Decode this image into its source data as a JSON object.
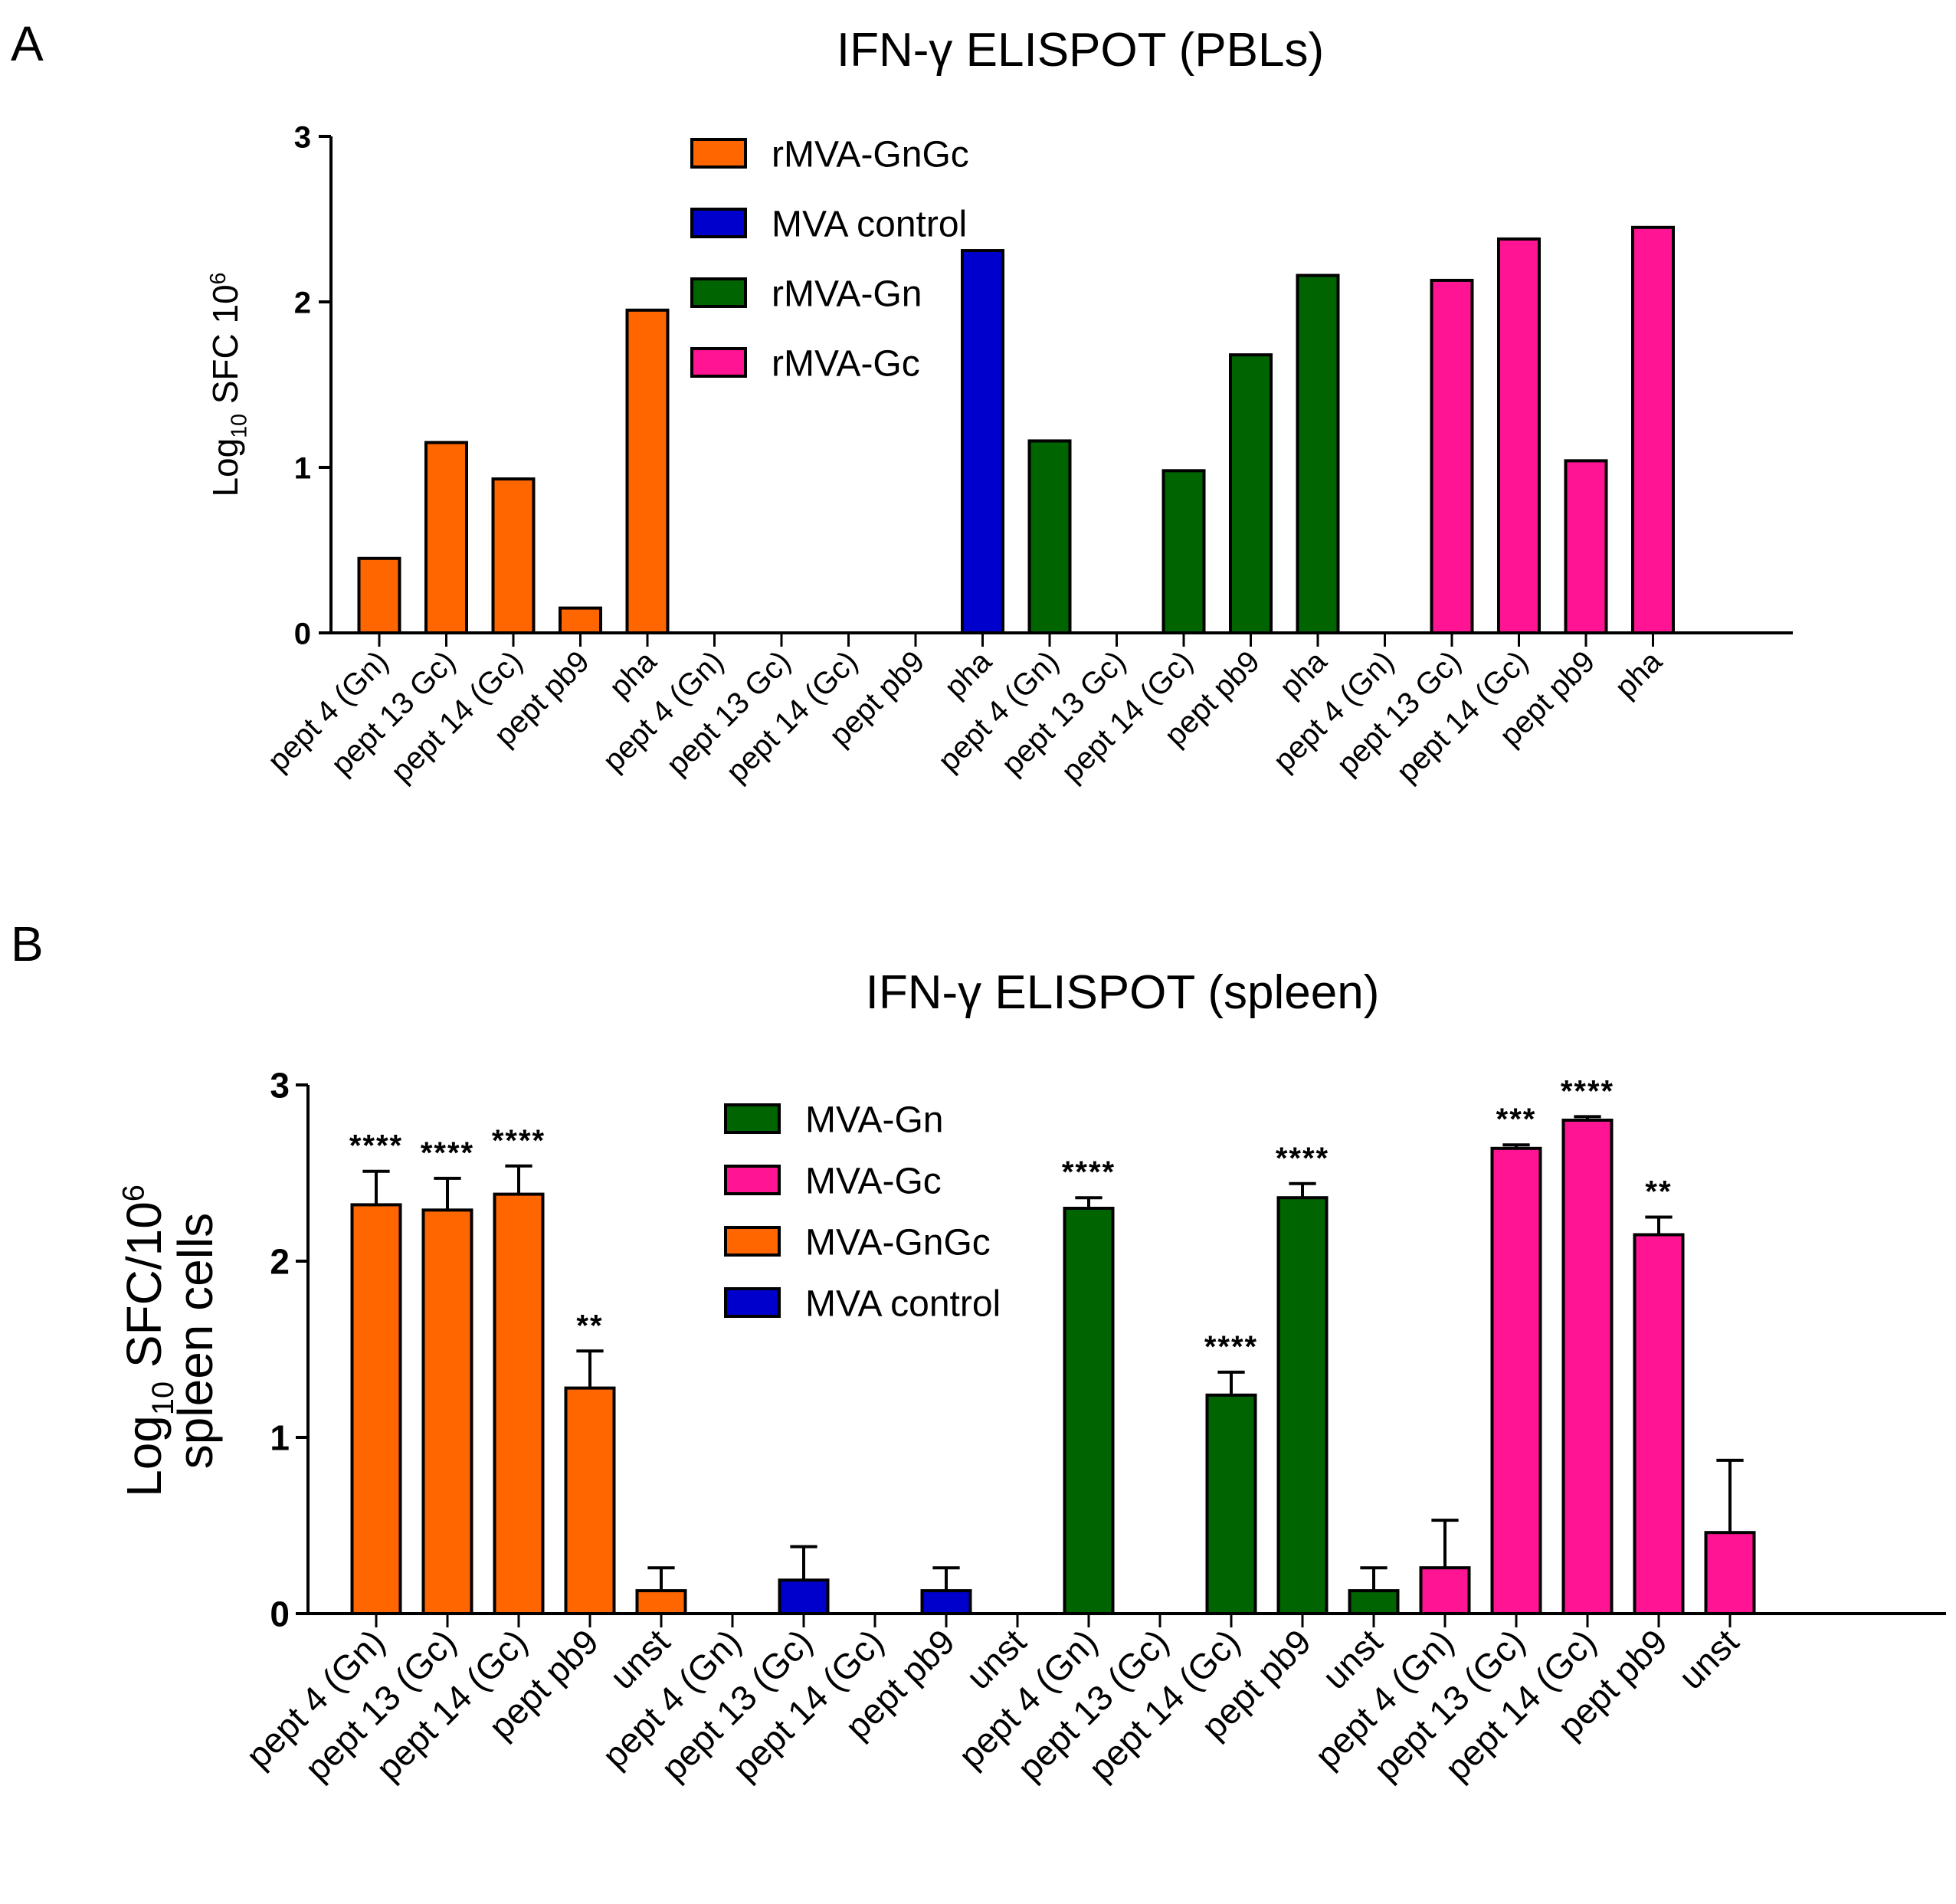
{
  "figure": {
    "panel_a_label": "A",
    "panel_b_label": "B"
  },
  "chart_data": [
    {
      "type": "bar",
      "title": "IFN-γ ELISPOT (PBLs)",
      "ylabel_main": "Log",
      "ylabel_sub": "10",
      "ylabel_rest": " SFC 10",
      "ylabel_sup": "6",
      "xlabel": "",
      "ylim": [
        0,
        3
      ],
      "yticks": [
        "0",
        "1",
        "2",
        "3"
      ],
      "error_bars": false,
      "legend": [
        {
          "name": "rMVA-GnGc",
          "color": "#ff6600"
        },
        {
          "name": "MVA control",
          "color": "#0000cc"
        },
        {
          "name": "rMVA-Gn",
          "color": "#006400"
        },
        {
          "name": "rMVA-Gc",
          "color": "#ff1493"
        }
      ],
      "groups": [
        {
          "name": "rMVA-GnGc",
          "color": "#ff6600",
          "categories": [
            "pept 4 (Gn)",
            "pept 13 Gc)",
            "pept 14 (Gc)",
            "pept pb9",
            "pha"
          ],
          "values": [
            0.45,
            1.15,
            0.93,
            0.15,
            1.95
          ]
        },
        {
          "name": "MVA control",
          "color": "#0000cc",
          "categories": [
            "pept 4 (Gn)",
            "pept 13 Gc)",
            "pept 14 (Gc)",
            "pept pb9",
            "pha"
          ],
          "values": [
            0,
            0,
            0,
            0,
            2.31
          ]
        },
        {
          "name": "rMVA-Gn",
          "color": "#006400",
          "categories": [
            "pept 4 (Gn)",
            "pept 13 Gc)",
            "pept 14 (Gc)",
            "pept pb9",
            "pha"
          ],
          "values": [
            1.16,
            0,
            0.98,
            1.68,
            2.16
          ]
        },
        {
          "name": "rMVA-Gc",
          "color": "#ff1493",
          "categories": [
            "pept 4 (Gn)",
            "pept 13 Gc)",
            "pept 14 (Gc)",
            "pept pb9",
            "pha"
          ],
          "values": [
            0,
            2.13,
            2.38,
            1.04,
            2.45
          ]
        }
      ]
    },
    {
      "type": "bar",
      "title": "IFN-γ ELISPOT (spleen)",
      "ylabel_main": "Log",
      "ylabel_sub": "10",
      "ylabel_rest": " SFC/10",
      "ylabel_sup": "6",
      "ylabel_line2": "spleen cells",
      "xlabel": "",
      "ylim": [
        0,
        3
      ],
      "yticks": [
        "0",
        "1",
        "2",
        "3"
      ],
      "error_bars": true,
      "legend": [
        {
          "name": "MVA-Gn",
          "color": "#006400"
        },
        {
          "name": "MVA-Gc",
          "color": "#ff1493"
        },
        {
          "name": "MVA-GnGc",
          "color": "#ff6600"
        },
        {
          "name": "MVA control",
          "color": "#0000cc"
        }
      ],
      "groups": [
        {
          "name": "MVA-GnGc",
          "color": "#ff6600",
          "categories": [
            "pept 4 (Gn)",
            "pept 13 (Gc)",
            "pept 14 (Gc)",
            "pept pb9",
            "unst"
          ],
          "values": [
            2.32,
            2.29,
            2.38,
            1.28,
            0.13
          ],
          "errors": [
            0.19,
            0.18,
            0.16,
            0.21,
            0.13
          ],
          "significance": [
            "****",
            "****",
            "****",
            "**",
            ""
          ]
        },
        {
          "name": "MVA control",
          "color": "#0000cc",
          "categories": [
            "pept 4 (Gn)",
            "pept 13 (Gc)",
            "pept 14 (Gc)",
            "pept pb9",
            "unst"
          ],
          "values": [
            0,
            0.19,
            0,
            0.13,
            0
          ],
          "errors": [
            0,
            0.19,
            0,
            0.13,
            0
          ],
          "significance": [
            "",
            "",
            "",
            "",
            ""
          ]
        },
        {
          "name": "MVA-Gn",
          "color": "#006400",
          "categories": [
            "pept 4 (Gn)",
            "pept 13 (Gc)",
            "pept 14 (Gc)",
            "pept pb9",
            "unst"
          ],
          "values": [
            2.3,
            0,
            1.24,
            2.36,
            0.13
          ],
          "errors": [
            0.06,
            0,
            0.13,
            0.08,
            0.13
          ],
          "significance": [
            "****",
            "",
            "****",
            "****",
            ""
          ]
        },
        {
          "name": "MVA-Gc",
          "color": "#ff1493",
          "categories": [
            "pept 4 (Gn)",
            "pept 13 (Gc)",
            "pept 14 (Gc)",
            "pept pb9",
            "unst"
          ],
          "values": [
            0.26,
            2.64,
            2.8,
            2.15,
            0.46
          ],
          "errors": [
            0.27,
            0.02,
            0.02,
            0.1,
            0.41
          ],
          "significance": [
            "",
            "***",
            "****",
            "**",
            ""
          ]
        }
      ]
    }
  ]
}
